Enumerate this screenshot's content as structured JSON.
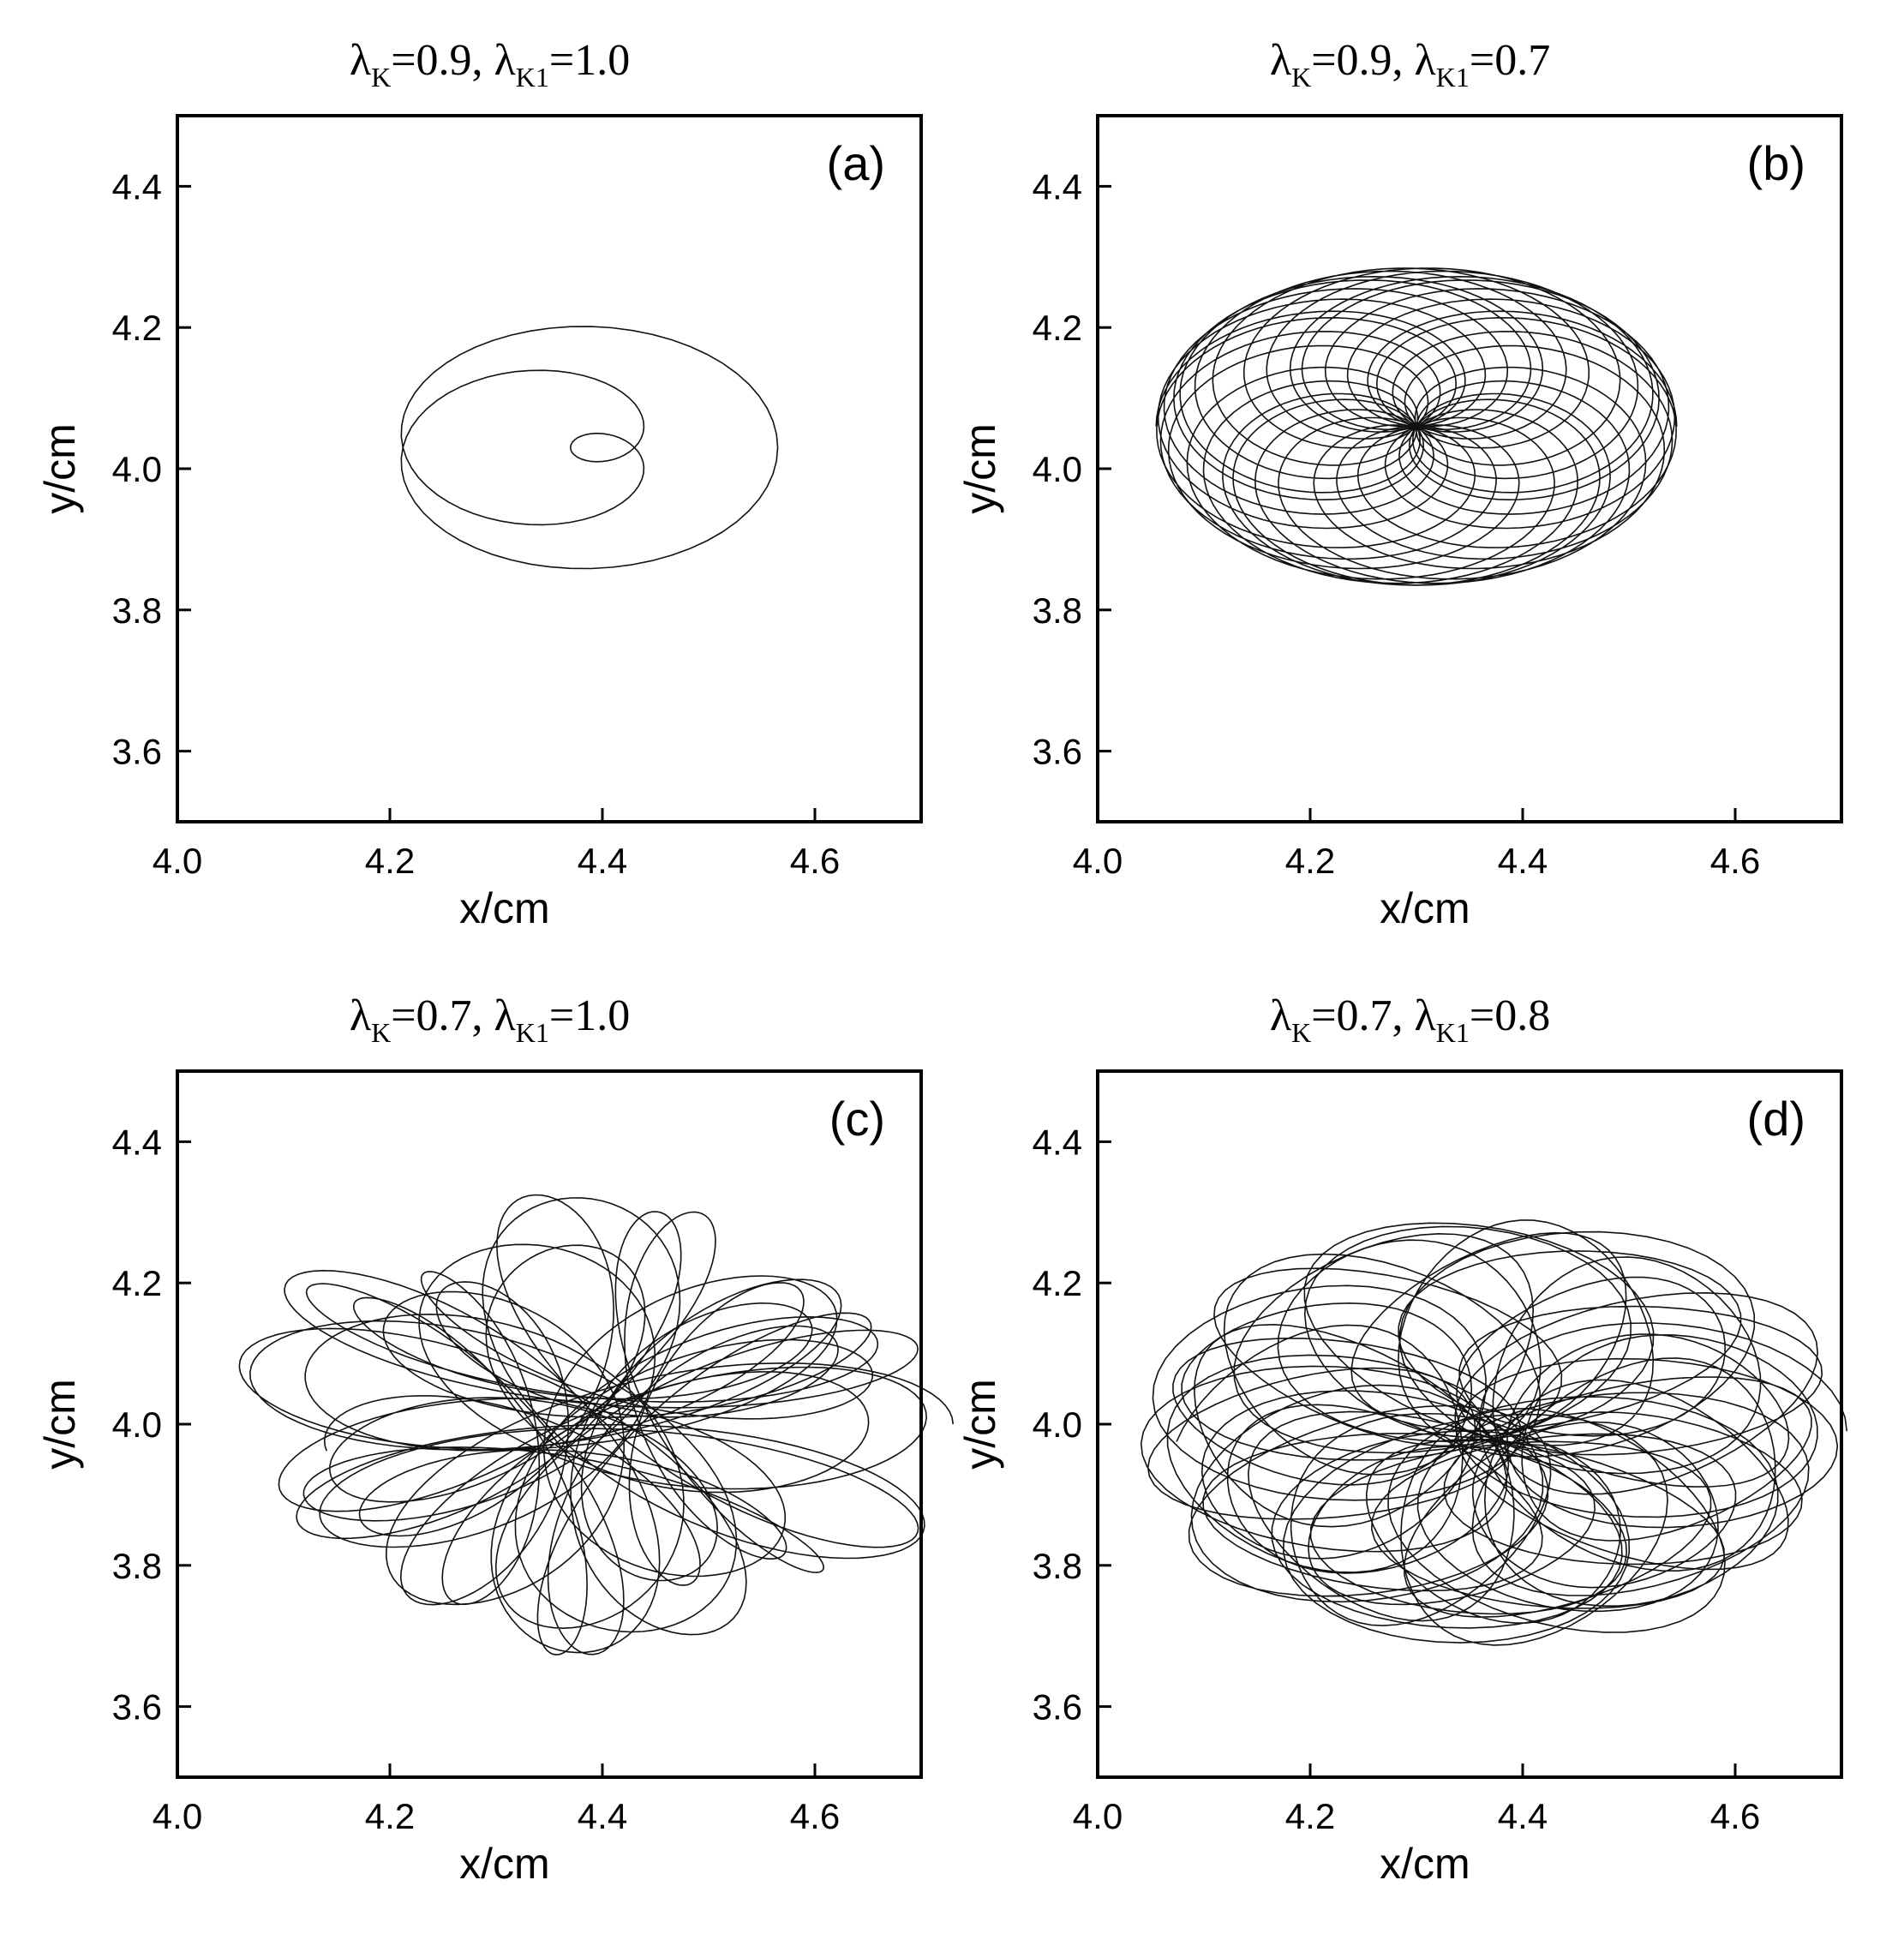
{
  "chart_data": [
    {
      "type": "line",
      "panel_label": "(a)",
      "title": {
        "lk": "0.9",
        "lk1": "1.0"
      },
      "xlabel": "x/cm",
      "ylabel": "y/cm",
      "xlim": [
        4.0,
        4.7
      ],
      "ylim": [
        3.5,
        4.5
      ],
      "xticks": [
        "4.0",
        "4.2",
        "4.4",
        "4.6"
      ],
      "yticks": [
        "3.6",
        "3.8",
        "4.0",
        "4.2",
        "4.4"
      ],
      "trajectory": {
        "cx": 4.37,
        "cy": 4.03,
        "rx": 0.195,
        "ry": 0.18,
        "petals": 4,
        "turns": 40,
        "dot_rx": 0.0,
        "dot_ry": 0.0
      },
      "grid": false
    },
    {
      "type": "line",
      "panel_label": "(b)",
      "title": {
        "lk": "0.9",
        "lk1": "0.7"
      },
      "xlabel": "x/cm",
      "ylabel": "y/cm",
      "xlim": [
        4.0,
        4.7
      ],
      "ylim": [
        3.5,
        4.5
      ],
      "xticks": [
        "4.0",
        "4.2",
        "4.4",
        "4.6"
      ],
      "yticks": [
        "3.6",
        "3.8",
        "4.0",
        "4.2",
        "4.4"
      ],
      "trajectory": {
        "cx": 4.3,
        "cy": 4.06,
        "rx": 0.245,
        "ry": 0.225,
        "petals": 5,
        "turns": 22,
        "dot_rx": 0.0,
        "dot_ry": 0.0
      },
      "grid": false
    },
    {
      "type": "line",
      "panel_label": "(c)",
      "title": {
        "lk": "0.7",
        "lk1": "1.0"
      },
      "xlabel": "x/cm",
      "ylabel": "y/cm",
      "xlim": [
        4.0,
        4.7
      ],
      "ylim": [
        3.5,
        4.5
      ],
      "xticks": [
        "4.0",
        "4.2",
        "4.4",
        "4.6"
      ],
      "yticks": [
        "3.6",
        "3.8",
        "4.0",
        "4.2",
        "4.4"
      ],
      "trajectory": {
        "cx": 4.39,
        "cy": 4.0,
        "rx": 0.29,
        "ry": 0.29,
        "petals": 7,
        "turns": 9,
        "dot_rx": 0.05,
        "dot_ry": 0.04
      },
      "grid": false
    },
    {
      "type": "line",
      "panel_label": "(d)",
      "title": {
        "lk": "0.7",
        "lk1": "0.8"
      },
      "xlabel": "x/cm",
      "ylabel": "y/cm",
      "xlim": [
        4.0,
        4.7
      ],
      "ylim": [
        3.5,
        4.5
      ],
      "xticks": [
        "4.0",
        "4.2",
        "4.4",
        "4.6"
      ],
      "yticks": [
        "3.6",
        "3.8",
        "4.0",
        "4.2",
        "4.4"
      ],
      "trajectory": {
        "cx": 4.37,
        "cy": 3.99,
        "rx": 0.305,
        "ry": 0.28,
        "petals": 7,
        "turns": 22,
        "dot_rx": 0.03,
        "dot_ry": 0.025
      },
      "grid": false
    }
  ]
}
